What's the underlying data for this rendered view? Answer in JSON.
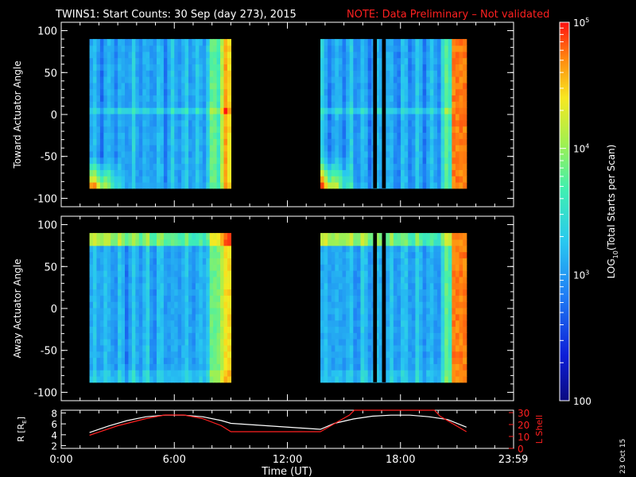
{
  "title": {
    "main": "TWINS1: Start Counts: 30 Sep (day 273), 2015",
    "note": "NOTE: Data Preliminary – Not validated"
  },
  "colors": {
    "background": "#000000",
    "axes": "#ffffff",
    "note": "#ff2020",
    "lshell": "#ff2020",
    "radius": "#ffffff"
  },
  "chart_data": [
    {
      "type": "heatmap",
      "ylabel": "Toward Actuator Angle",
      "ylim": [
        -110,
        110
      ],
      "yticks": [
        100,
        50,
        0,
        -50,
        -100
      ],
      "xlim": [
        0,
        24
      ],
      "data_blocks": [
        {
          "t_start": 1.5,
          "t_end": 9.0,
          "angle_min": -88,
          "angle_max": 90
        },
        {
          "t_start": 13.75,
          "t_end": 21.5,
          "angle_min": -88,
          "angle_max": 90
        }
      ]
    },
    {
      "type": "heatmap",
      "ylabel": "Away Actuator Angle",
      "ylim": [
        -110,
        110
      ],
      "yticks": [
        100,
        50,
        0,
        -50,
        -100
      ],
      "xlim": [
        0,
        24
      ],
      "data_blocks": [
        {
          "t_start": 1.5,
          "t_end": 9.0,
          "angle_min": -88,
          "angle_max": 90
        },
        {
          "t_start": 13.75,
          "t_end": 21.5,
          "angle_min": -88,
          "angle_max": 90
        }
      ]
    },
    {
      "type": "line",
      "ylabel": "R [R",
      "ylabel_sub": "E",
      "ylabel_end": "]",
      "y2label": "L Shell",
      "yticks": [
        2,
        4,
        6,
        8
      ],
      "y2ticks": [
        0,
        10,
        20,
        30
      ],
      "ylim": [
        1.5,
        8.5
      ],
      "y2lim": [
        0,
        32
      ],
      "xlim": [
        0,
        24
      ],
      "xticks": [
        {
          "t": 0,
          "label": "0:00"
        },
        {
          "t": 6,
          "label": "6:00"
        },
        {
          "t": 12,
          "label": "12:00"
        },
        {
          "t": 18,
          "label": "18:00"
        },
        {
          "t": 23.98,
          "label": "23:59"
        }
      ],
      "xlabel": "Time (UT)",
      "radius": {
        "x": [
          1.5,
          2.5,
          3.5,
          4.5,
          5.5,
          6.5,
          7.5,
          8.5,
          9.0,
          13.75,
          14.5,
          15.5,
          16.5,
          17.5,
          18.5,
          19.5,
          20.5,
          21.5
        ],
        "y": [
          4.4,
          5.6,
          6.6,
          7.3,
          7.6,
          7.6,
          7.3,
          6.6,
          6.1,
          5.0,
          6.1,
          6.9,
          7.4,
          7.6,
          7.6,
          7.3,
          6.8,
          5.4
        ]
      },
      "lshell": {
        "x": [
          1.5,
          3.0,
          4.5,
          5.5,
          6.5,
          7.5,
          8.5,
          9.0,
          13.75,
          15.3,
          15.55,
          19.8,
          20.1,
          21.5
        ],
        "y": [
          11,
          19,
          25,
          28,
          28,
          25,
          19,
          14,
          14,
          28,
          32,
          32,
          27,
          14
        ]
      }
    }
  ],
  "colorbar": {
    "label": "LOG",
    "label_sub": "10",
    "label_end": "(Total Starts per Scan)",
    "ticks": [
      {
        "value": 100,
        "label": "100",
        "kind": "plain"
      },
      {
        "value": 1000,
        "label_base": "10",
        "label_exp": "3",
        "kind": "power"
      },
      {
        "value": 10000,
        "label_base": "10",
        "label_exp": "4",
        "kind": "power"
      },
      {
        "value": 100000,
        "label_base": "10",
        "label_exp": "5",
        "kind": "power"
      }
    ],
    "range": [
      100,
      100000
    ]
  },
  "stamp": "23 Oct 15"
}
